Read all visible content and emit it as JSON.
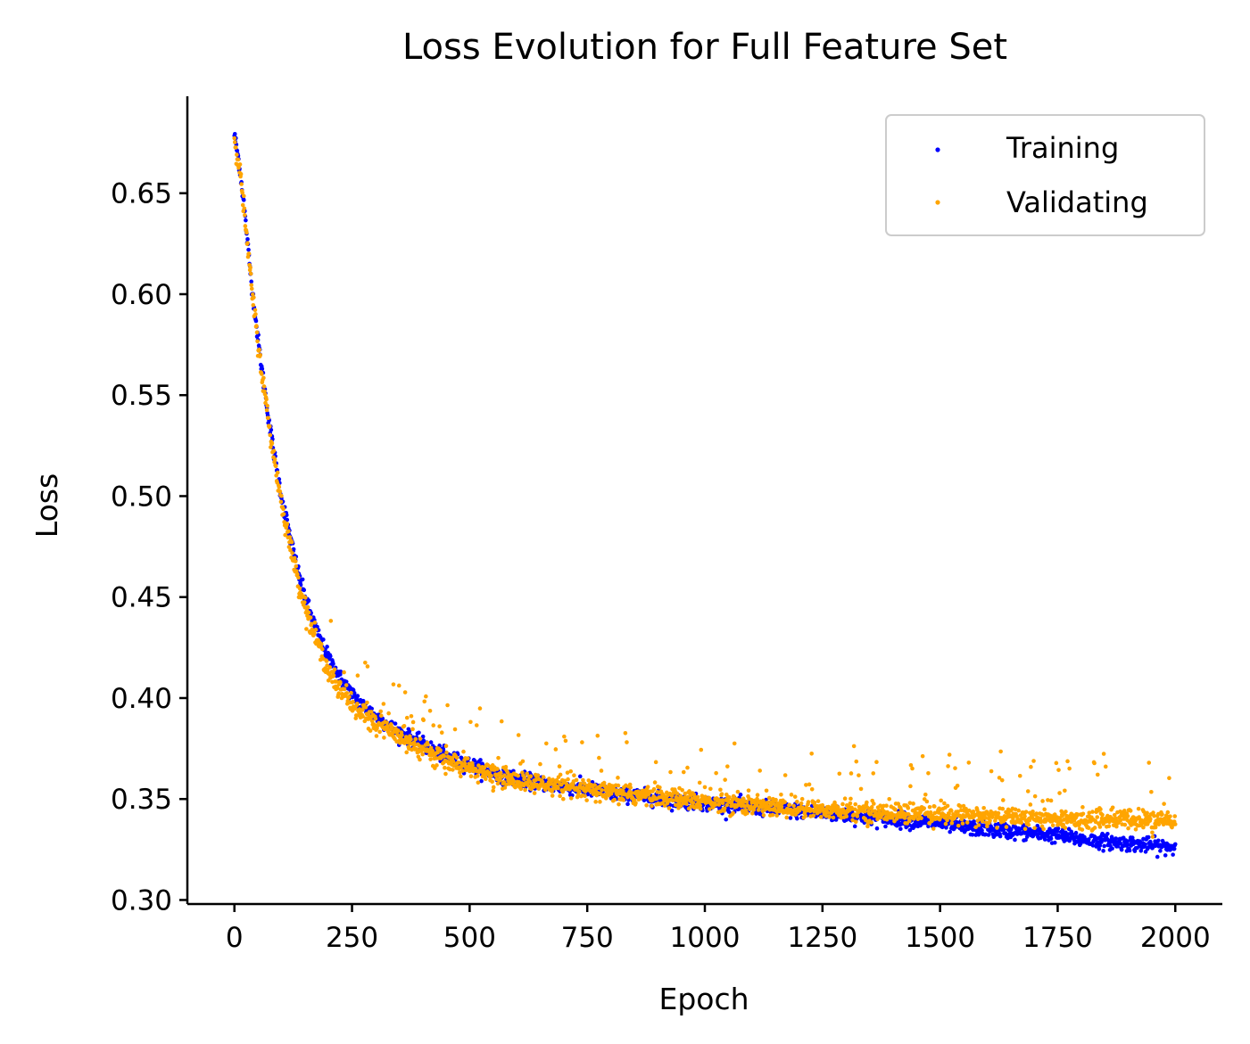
{
  "chart_data": {
    "type": "scatter",
    "title": "Loss Evolution for Full Feature Set",
    "xlabel": "Epoch",
    "ylabel": "Loss",
    "xlim": [
      -100,
      2100
    ],
    "ylim": [
      0.298,
      0.698
    ],
    "xticks": [
      0,
      250,
      500,
      750,
      1000,
      1250,
      1500,
      1750,
      2000
    ],
    "xtick_labels": [
      "0",
      "250",
      "500",
      "750",
      "1000",
      "1250",
      "1500",
      "1750",
      "2000"
    ],
    "yticks": [
      0.3,
      0.35,
      0.4,
      0.45,
      0.5,
      0.55,
      0.6,
      0.65
    ],
    "ytick_labels": [
      "0.30",
      "0.35",
      "0.40",
      "0.45",
      "0.50",
      "0.55",
      "0.60",
      "0.65"
    ],
    "grid": false,
    "legend_position": "top-right",
    "spines": "left-bottom",
    "series": [
      {
        "name": "Training",
        "color": "#0000ff",
        "x": [
          0,
          10,
          20,
          30,
          40,
          50,
          60,
          70,
          80,
          90,
          100,
          120,
          140,
          160,
          180,
          200,
          225,
          250,
          275,
          300,
          350,
          400,
          450,
          500,
          550,
          600,
          650,
          700,
          750,
          800,
          850,
          900,
          950,
          1000,
          1050,
          1100,
          1150,
          1200,
          1250,
          1300,
          1350,
          1400,
          1450,
          1500,
          1550,
          1600,
          1650,
          1700,
          1750,
          1800,
          1850,
          1900,
          1950,
          2000
        ],
        "y": [
          0.679,
          0.665,
          0.645,
          0.62,
          0.598,
          0.578,
          0.56,
          0.543,
          0.527,
          0.513,
          0.5,
          0.478,
          0.458,
          0.443,
          0.43,
          0.42,
          0.41,
          0.402,
          0.396,
          0.391,
          0.383,
          0.377,
          0.371,
          0.367,
          0.363,
          0.36,
          0.358,
          0.356,
          0.355,
          0.353,
          0.352,
          0.35,
          0.349,
          0.348,
          0.347,
          0.346,
          0.345,
          0.344,
          0.343,
          0.342,
          0.341,
          0.34,
          0.339,
          0.338,
          0.336,
          0.335,
          0.334,
          0.333,
          0.332,
          0.33,
          0.329,
          0.328,
          0.327,
          0.326
        ]
      },
      {
        "name": "Validating",
        "color": "#ffa500",
        "x": [
          0,
          10,
          20,
          30,
          40,
          50,
          60,
          70,
          80,
          90,
          100,
          120,
          140,
          160,
          180,
          200,
          225,
          250,
          275,
          300,
          350,
          400,
          450,
          500,
          550,
          600,
          650,
          700,
          750,
          800,
          850,
          900,
          950,
          1000,
          1050,
          1100,
          1150,
          1200,
          1250,
          1300,
          1350,
          1400,
          1450,
          1500,
          1550,
          1600,
          1650,
          1700,
          1750,
          1800,
          1850,
          1900,
          1950,
          2000
        ],
        "y": [
          0.678,
          0.664,
          0.643,
          0.618,
          0.596,
          0.576,
          0.558,
          0.541,
          0.525,
          0.511,
          0.497,
          0.474,
          0.454,
          0.438,
          0.425,
          0.414,
          0.404,
          0.397,
          0.392,
          0.388,
          0.381,
          0.375,
          0.369,
          0.365,
          0.362,
          0.359,
          0.357,
          0.355,
          0.354,
          0.353,
          0.352,
          0.351,
          0.35,
          0.349,
          0.348,
          0.347,
          0.346,
          0.345,
          0.345,
          0.344,
          0.344,
          0.343,
          0.343,
          0.342,
          0.342,
          0.341,
          0.341,
          0.341,
          0.34,
          0.34,
          0.34,
          0.34,
          0.339,
          0.339
        ]
      }
    ]
  }
}
